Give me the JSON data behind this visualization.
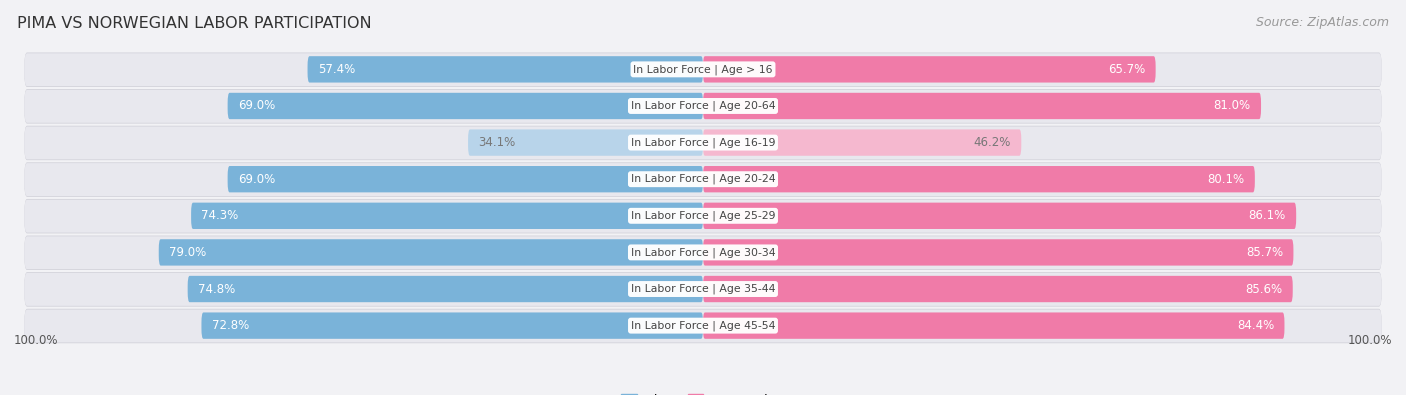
{
  "title": "PIMA VS NORWEGIAN LABOR PARTICIPATION",
  "source": "Source: ZipAtlas.com",
  "categories": [
    "In Labor Force | Age > 16",
    "In Labor Force | Age 20-64",
    "In Labor Force | Age 16-19",
    "In Labor Force | Age 20-24",
    "In Labor Force | Age 25-29",
    "In Labor Force | Age 30-34",
    "In Labor Force | Age 35-44",
    "In Labor Force | Age 45-54"
  ],
  "pima_values": [
    57.4,
    69.0,
    34.1,
    69.0,
    74.3,
    79.0,
    74.8,
    72.8
  ],
  "norwegian_values": [
    65.7,
    81.0,
    46.2,
    80.1,
    86.1,
    85.7,
    85.6,
    84.4
  ],
  "pima_color_strong": "#7ab3d9",
  "pima_color_light": "#b8d4ea",
  "norwegian_color_strong": "#f07ba8",
  "norwegian_color_light": "#f5b8cf",
  "row_bg_color": "#e8e8ee",
  "row_shadow_color": "#d0d0d8",
  "center_label_color": "#555555",
  "max_val": 100.0,
  "bar_height": 0.72,
  "figsize": [
    14.06,
    3.95
  ],
  "dpi": 100,
  "bg_color": "#f2f2f5"
}
